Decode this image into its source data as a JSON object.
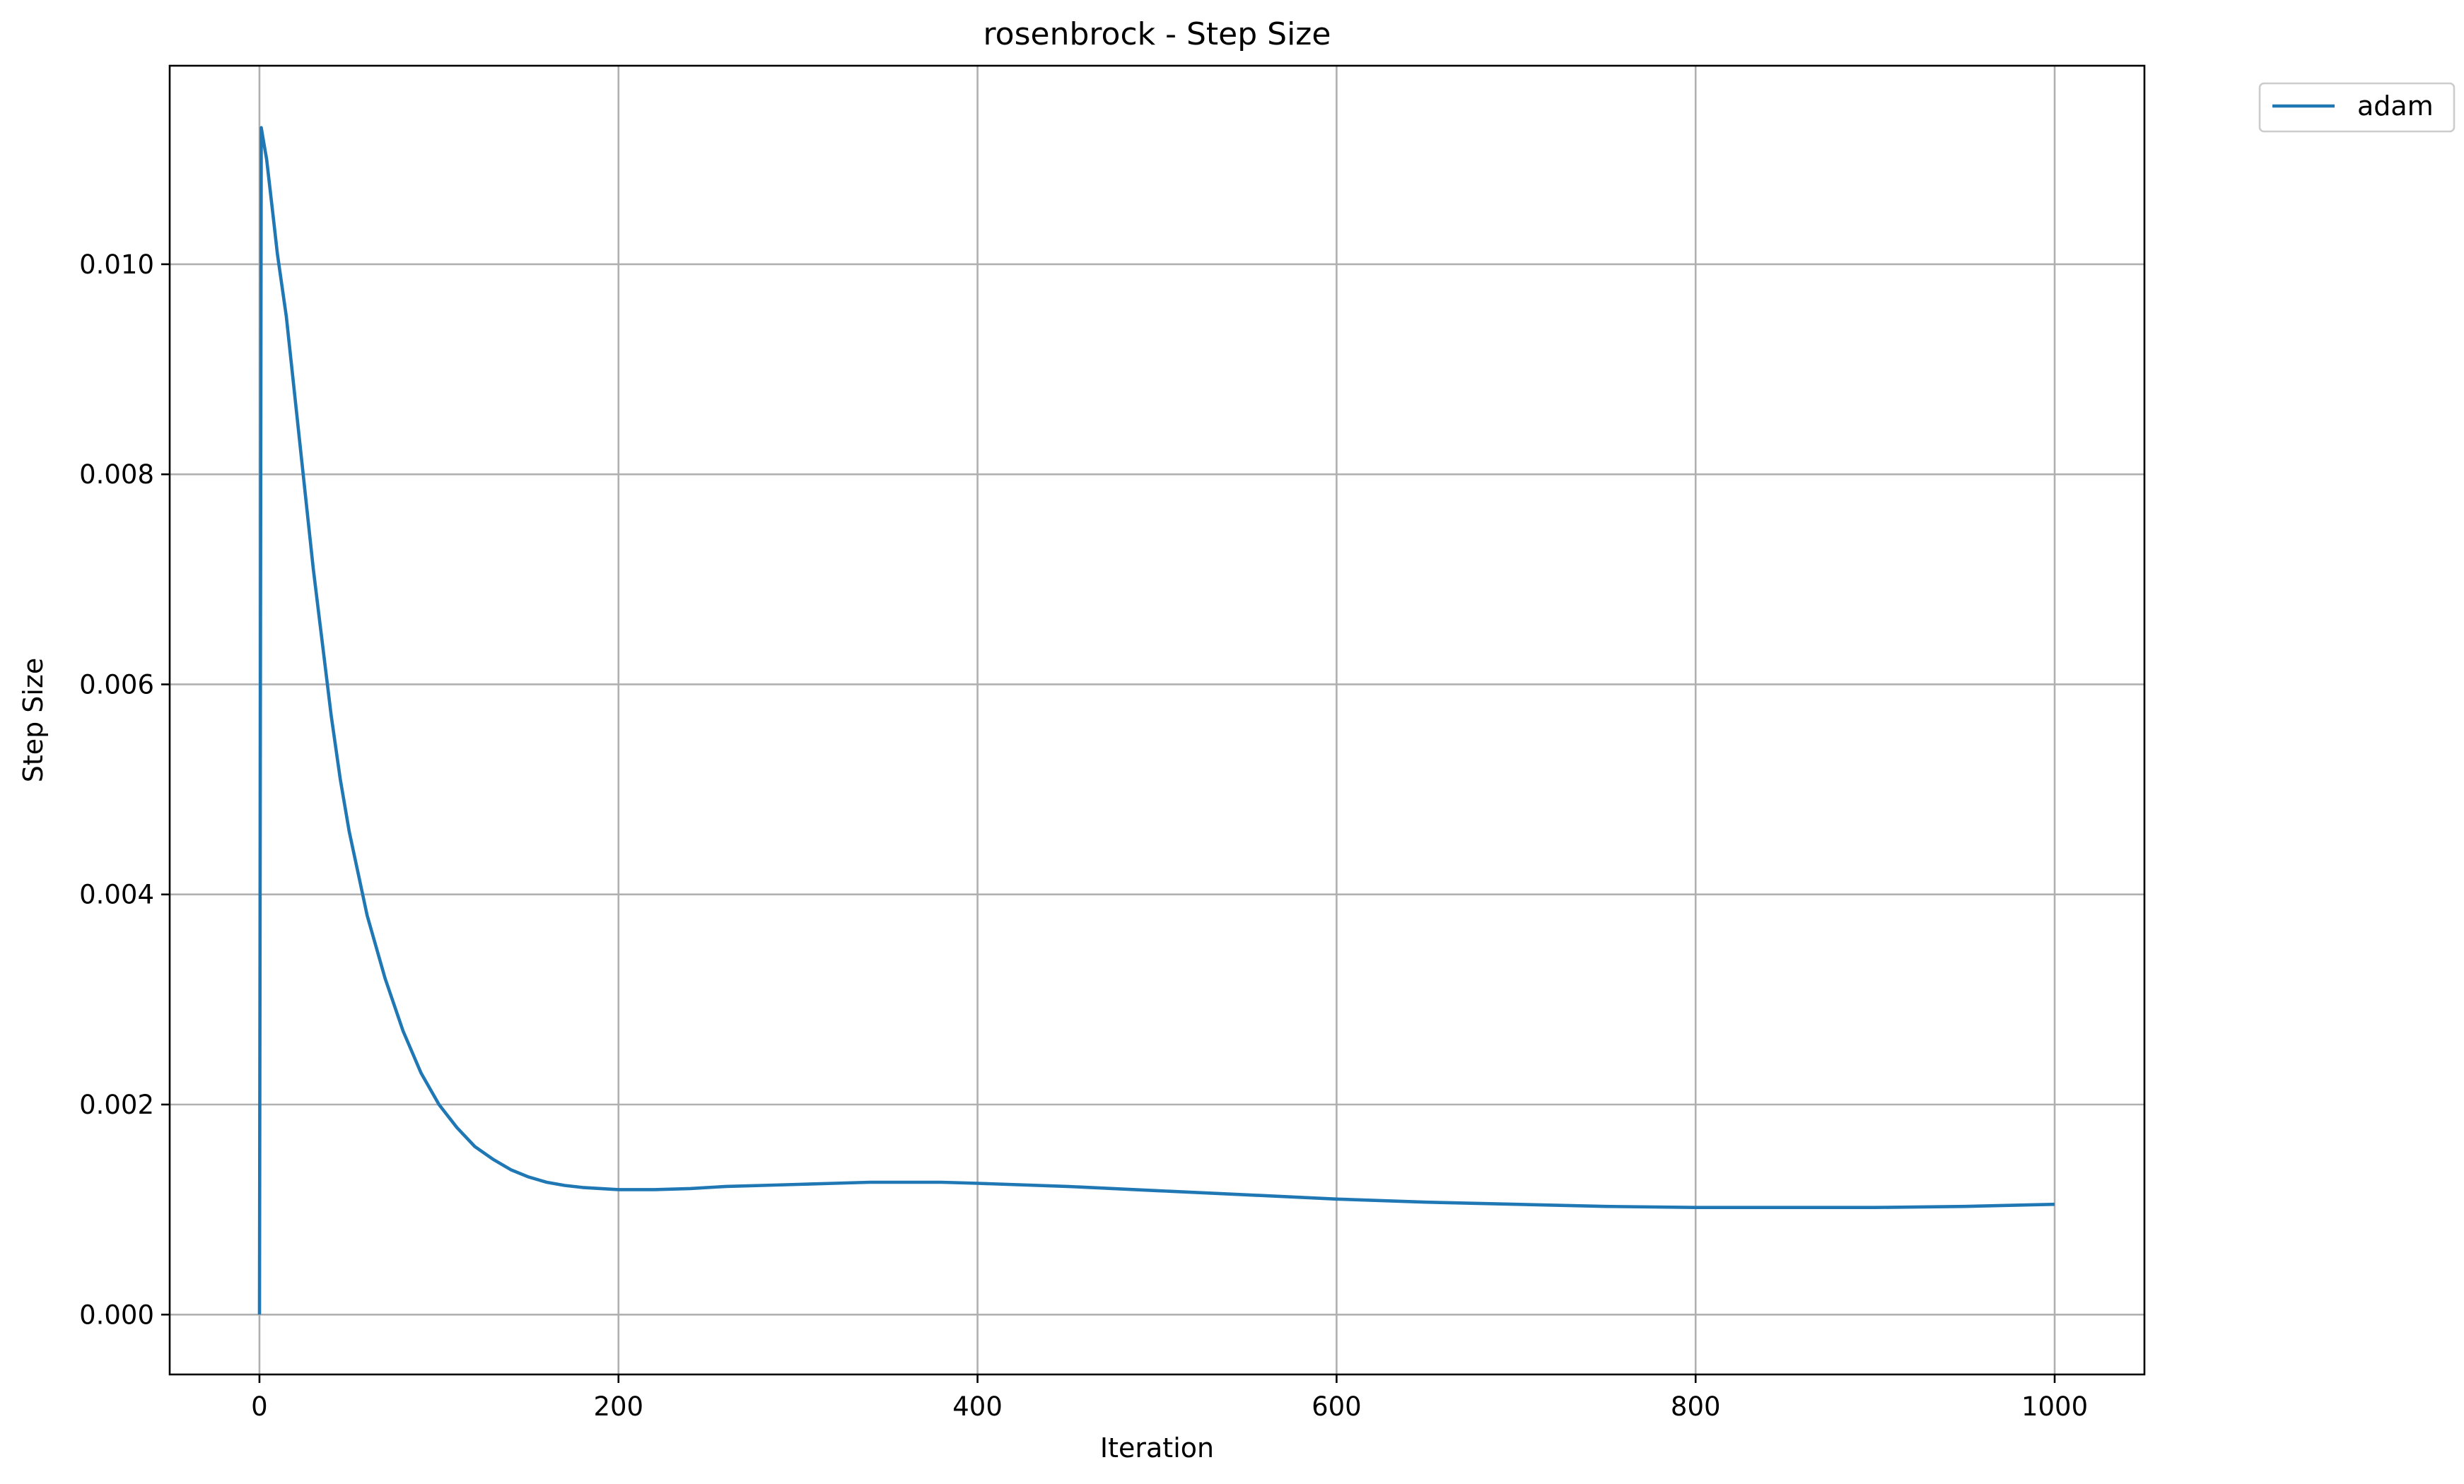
{
  "chart_data": {
    "type": "line",
    "title": "rosenbrock - Step Size",
    "xlabel": "Iteration",
    "ylabel": "Step Size",
    "xlim": [
      -50,
      1050
    ],
    "ylim": [
      -0.00057,
      0.01189
    ],
    "grid": true,
    "legend_position": "outside top-right",
    "x_ticks": [
      0,
      200,
      400,
      600,
      800,
      1000
    ],
    "x_tick_labels": [
      "0",
      "200",
      "400",
      "600",
      "800",
      "1000"
    ],
    "y_ticks": [
      0.0,
      0.002,
      0.004,
      0.006,
      0.008,
      0.01
    ],
    "y_tick_labels": [
      "0.000",
      "0.002",
      "0.004",
      "0.006",
      "0.008",
      "0.010"
    ],
    "series": [
      {
        "name": "adam",
        "color": "#1f77b4",
        "x": [
          0,
          1,
          2,
          4,
          6,
          8,
          10,
          15,
          20,
          25,
          30,
          35,
          40,
          45,
          50,
          55,
          60,
          70,
          80,
          90,
          100,
          110,
          120,
          130,
          140,
          150,
          160,
          170,
          180,
          190,
          200,
          210,
          220,
          240,
          260,
          280,
          300,
          320,
          340,
          360,
          380,
          400,
          450,
          500,
          550,
          600,
          650,
          700,
          750,
          800,
          850,
          900,
          950,
          1000
        ],
        "y": [
          0.0,
          0.0113,
          0.0112,
          0.011,
          0.0107,
          0.0104,
          0.0101,
          0.0095,
          0.0087,
          0.0079,
          0.0071,
          0.0064,
          0.0057,
          0.0051,
          0.0046,
          0.0042,
          0.0038,
          0.0032,
          0.0027,
          0.0023,
          0.002,
          0.00178,
          0.0016,
          0.00148,
          0.00138,
          0.00131,
          0.00126,
          0.00123,
          0.00121,
          0.0012,
          0.00119,
          0.00119,
          0.00119,
          0.0012,
          0.00122,
          0.00123,
          0.00124,
          0.00125,
          0.00126,
          0.00126,
          0.00126,
          0.00125,
          0.00122,
          0.00118,
          0.00114,
          0.0011,
          0.00107,
          0.00105,
          0.00103,
          0.00102,
          0.00102,
          0.00102,
          0.00103,
          0.00105
        ]
      }
    ]
  }
}
